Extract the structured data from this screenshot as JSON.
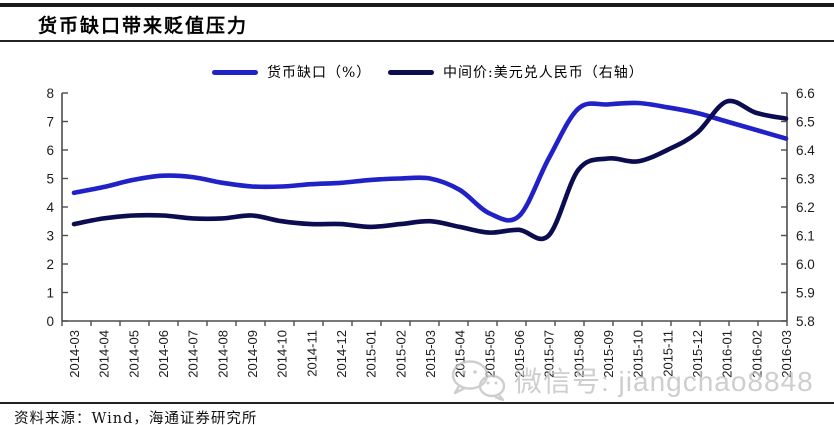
{
  "header": {
    "title": "货币缺口带来贬值压力"
  },
  "legend": {
    "items": [
      {
        "label": "货币缺口（%）",
        "color": "#2121c8"
      },
      {
        "label": "中间价:美元兑人民币（右轴）",
        "color": "#0c0c50"
      }
    ]
  },
  "chart_data": {
    "type": "line",
    "title": "货币缺口带来贬值压力",
    "grid": false,
    "legend_position": "top",
    "x": [
      "2014-03",
      "2014-04",
      "2014-05",
      "2014-06",
      "2014-07",
      "2014-08",
      "2014-09",
      "2014-10",
      "2014-11",
      "2014-12",
      "2015-01",
      "2015-02",
      "2015-03",
      "2015-04",
      "2015-05",
      "2015-06",
      "2015-07",
      "2015-08",
      "2015-09",
      "2015-10",
      "2015-11",
      "2015-12",
      "2016-01",
      "2016-02",
      "2016-03"
    ],
    "left_axis": {
      "min": 0,
      "max": 8,
      "tick_step": 1,
      "for_series": "货币缺口（%）"
    },
    "right_axis": {
      "min": 5.8,
      "max": 6.6,
      "tick_step": 0.1,
      "for_series": "中间价:美元兑人民币（右轴）"
    },
    "series": [
      {
        "name": "货币缺口（%）",
        "axis": "left",
        "color": "#2121c8",
        "values": [
          4.5,
          4.7,
          4.95,
          5.1,
          5.05,
          4.85,
          4.72,
          4.72,
          4.8,
          4.85,
          4.95,
          5.0,
          5.0,
          4.6,
          3.78,
          3.68,
          5.7,
          7.45,
          7.6,
          7.65,
          7.5,
          7.3,
          7.0,
          6.7,
          6.4
        ]
      },
      {
        "name": "中间价:美元兑人民币（右轴）",
        "axis": "right",
        "color": "#0c0c50",
        "values": [
          6.14,
          6.16,
          6.17,
          6.17,
          6.16,
          6.16,
          6.17,
          6.15,
          6.14,
          6.14,
          6.13,
          6.14,
          6.15,
          6.13,
          6.11,
          6.12,
          6.1,
          6.33,
          6.37,
          6.36,
          6.4,
          6.46,
          6.57,
          6.53,
          6.51
        ]
      }
    ]
  },
  "watermark": {
    "icon": "wechat-icon",
    "text": "微信号: jiangchao8848"
  },
  "footer": {
    "source": "资料来源：Wind，海通证券研究所"
  }
}
